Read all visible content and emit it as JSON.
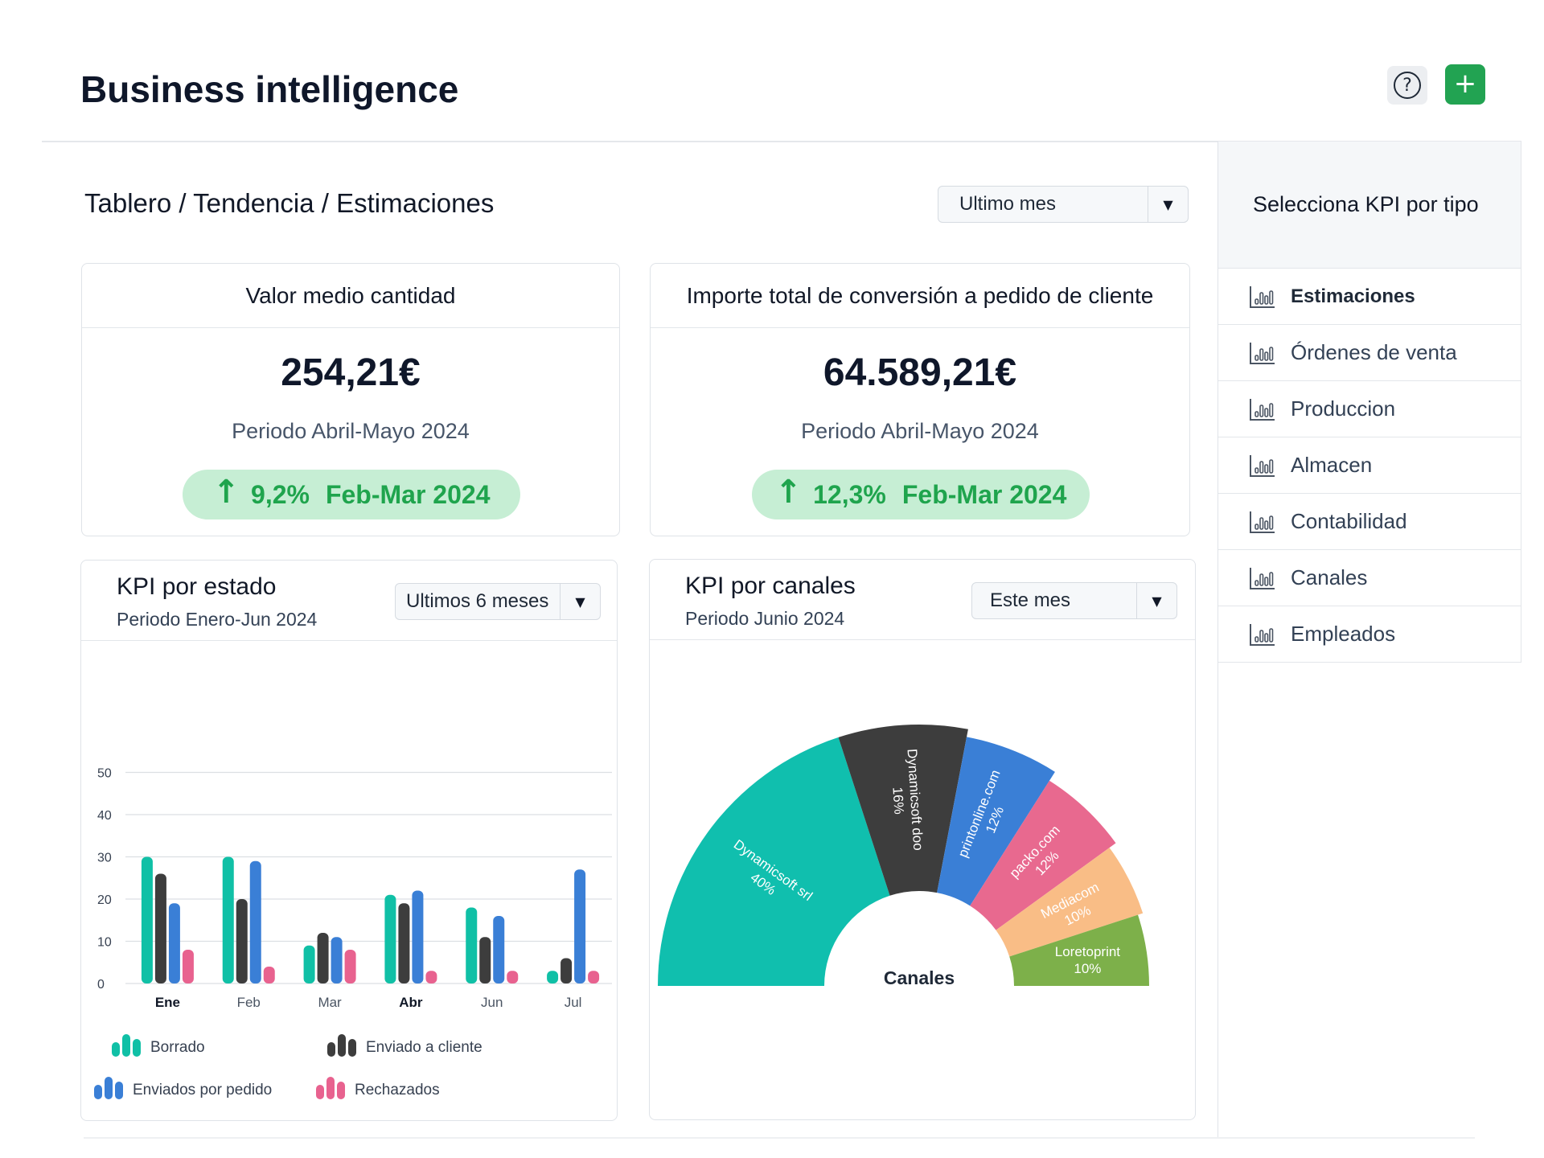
{
  "header": {
    "title": "Business intelligence",
    "help_icon": "help-icon",
    "add_label": "+"
  },
  "breadcrumb": "Tablero / Tendencia / Estimaciones",
  "period_select": {
    "value": "Ultimo mes"
  },
  "kpi_cards": [
    {
      "title": "Valor medio cantidad",
      "value": "254,21€",
      "period": "Periodo Abril-Mayo 2024",
      "change": "9,2%",
      "compare": "Feb-Mar 2024",
      "trend": "up"
    },
    {
      "title": "Importe total de conversión a pedido de cliente",
      "value": "64.589,21€",
      "period": "Periodo Abril-Mayo 2024",
      "change": "12,3%",
      "compare": "Feb-Mar 2024",
      "trend": "up"
    }
  ],
  "bar_panel": {
    "title": "KPI por estado",
    "subtitle": "Periodo Enero-Jun 2024",
    "select": "Ultimos 6 meses"
  },
  "pie_panel": {
    "title": "KPI por canales",
    "subtitle": "Periodo Junio 2024",
    "select": "Este mes",
    "center_label": "Canales"
  },
  "sidebar": {
    "title": "Selecciona KPI por tipo",
    "items": [
      {
        "label": "Estimaciones",
        "active": true
      },
      {
        "label": "Órdenes de venta"
      },
      {
        "label": "Produccion"
      },
      {
        "label": "Almacen"
      },
      {
        "label": "Contabilidad"
      },
      {
        "label": "Canales"
      },
      {
        "label": "Empleados"
      }
    ]
  },
  "colors": {
    "accent_green": "#22a352",
    "borrado": "#10c0a6",
    "enviado_cliente": "#3d3d3d",
    "enviados_pedido": "#3a7fd6",
    "rechazados": "#e8628f"
  },
  "chart_data": [
    {
      "type": "bar",
      "categories": [
        "Ene",
        "Feb",
        "Mar",
        "Abr",
        "Jun",
        "Jul"
      ],
      "bold_categories": [
        "Ene",
        "Abr"
      ],
      "yticks": [
        0,
        10,
        20,
        30,
        40,
        50
      ],
      "ylim": [
        0,
        50
      ],
      "grid": true,
      "legend": "bottom",
      "series": [
        {
          "name": "Borrado",
          "color": "#10c0a6",
          "values": [
            30,
            30,
            9,
            21,
            18,
            3
          ]
        },
        {
          "name": "Enviado a cliente",
          "color": "#3d3d3d",
          "values": [
            26,
            20,
            12,
            19,
            11,
            6
          ]
        },
        {
          "name": "Enviados por pedido",
          "color": "#3a7fd6",
          "values": [
            19,
            29,
            11,
            22,
            16,
            27
          ]
        },
        {
          "name": "Rechazados",
          "color": "#e8628f",
          "values": [
            8,
            4,
            8,
            3,
            3,
            3
          ]
        }
      ]
    },
    {
      "type": "pie",
      "title": "Canales",
      "slices": [
        {
          "label": "Dynamicsoft srl",
          "pct": "40%",
          "value": 40,
          "color": "#10bfae",
          "text_color": "#ffffff"
        },
        {
          "label": "Dynamicsoft doo",
          "pct": "16%",
          "value": 16,
          "color": "#3d3d3d",
          "text_color": "#ffffff"
        },
        {
          "label": "printonline.com",
          "pct": "12%",
          "value": 12,
          "color": "#3a7fd6",
          "text_color": "#ffffff"
        },
        {
          "label": "packo.com",
          "pct": "12%",
          "value": 12,
          "color": "#e8698f",
          "text_color": "#ffffff"
        },
        {
          "label": "Mediacom",
          "pct": "10%",
          "value": 10,
          "color": "#f9bd86",
          "text_color": "#ffffff"
        },
        {
          "label": "Loretoprint",
          "pct": "10%",
          "value": 10,
          "color": "#7db04a",
          "text_color": "#ffffff"
        }
      ]
    }
  ]
}
